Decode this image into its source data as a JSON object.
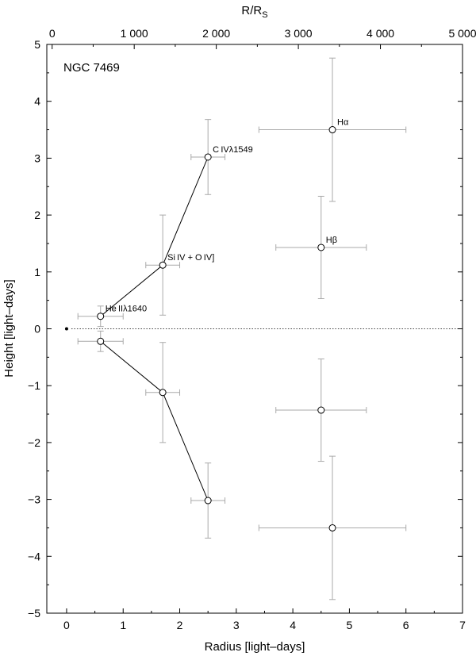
{
  "chart_data": {
    "type": "scatter",
    "title": "",
    "annotation": "NGC 7469",
    "xlabel": "Radius  [light–days]",
    "ylabel": "Height  [light–days]",
    "x2label_base": "R/R",
    "x2label_sub": "S",
    "xlim": [
      -0.35,
      7
    ],
    "ylim": [
      -5,
      5
    ],
    "x2lim": [
      -65,
      5000
    ],
    "grid": false,
    "xticks": [
      0,
      1,
      2,
      3,
      4,
      5,
      6,
      7
    ],
    "xtick_labels": [
      "0",
      "1",
      "2",
      "3",
      "4",
      "5",
      "6",
      "7"
    ],
    "yticks": [
      -5,
      -4,
      -3,
      -2,
      -1,
      0,
      1,
      2,
      3,
      4,
      5
    ],
    "ytick_labels": [
      "−5",
      "−4",
      "−3",
      "−2",
      "−1",
      "0",
      "1",
      "2",
      "3",
      "4",
      "5"
    ],
    "x2ticks": [
      0,
      1000,
      2000,
      3000,
      4000,
      5000
    ],
    "x2tick_labels": [
      "0",
      "1 000",
      "2 000",
      "3 000",
      "4 000",
      "5 000"
    ],
    "origin_marker": [
      0,
      0
    ],
    "reference_line_y": 0,
    "points": [
      {
        "x": 0.6,
        "y": 0.22,
        "xerr": 0.4,
        "yerr": 0.18,
        "label": "He IIλ1640"
      },
      {
        "x": 1.7,
        "y": 1.12,
        "xerr": 0.3,
        "yerr": 0.88,
        "label": "Si IV + O IV]"
      },
      {
        "x": 2.5,
        "y": 3.02,
        "xerr": 0.3,
        "yerr": 0.66,
        "label": "C IVλ1549"
      },
      {
        "x": 4.5,
        "y": 1.43,
        "xerr": 0.8,
        "yerr": 0.9,
        "label": "Hβ"
      },
      {
        "x": 4.7,
        "y": 3.5,
        "xerr": 1.3,
        "yerr": 1.26,
        "label": "Hα"
      },
      {
        "x": 0.6,
        "y": -0.22,
        "xerr": 0.4,
        "yerr": 0.18,
        "label": ""
      },
      {
        "x": 1.7,
        "y": -1.12,
        "xerr": 0.3,
        "yerr": 0.88,
        "label": ""
      },
      {
        "x": 2.5,
        "y": -3.02,
        "xerr": 0.3,
        "yerr": 0.66,
        "label": ""
      },
      {
        "x": 4.5,
        "y": -1.43,
        "xerr": 0.8,
        "yerr": 0.9,
        "label": ""
      },
      {
        "x": 4.7,
        "y": -3.5,
        "xerr": 1.3,
        "yerr": 1.26,
        "label": ""
      }
    ],
    "connected_upper": [
      0,
      1,
      2
    ],
    "connected_lower": [
      5,
      6,
      7
    ]
  }
}
